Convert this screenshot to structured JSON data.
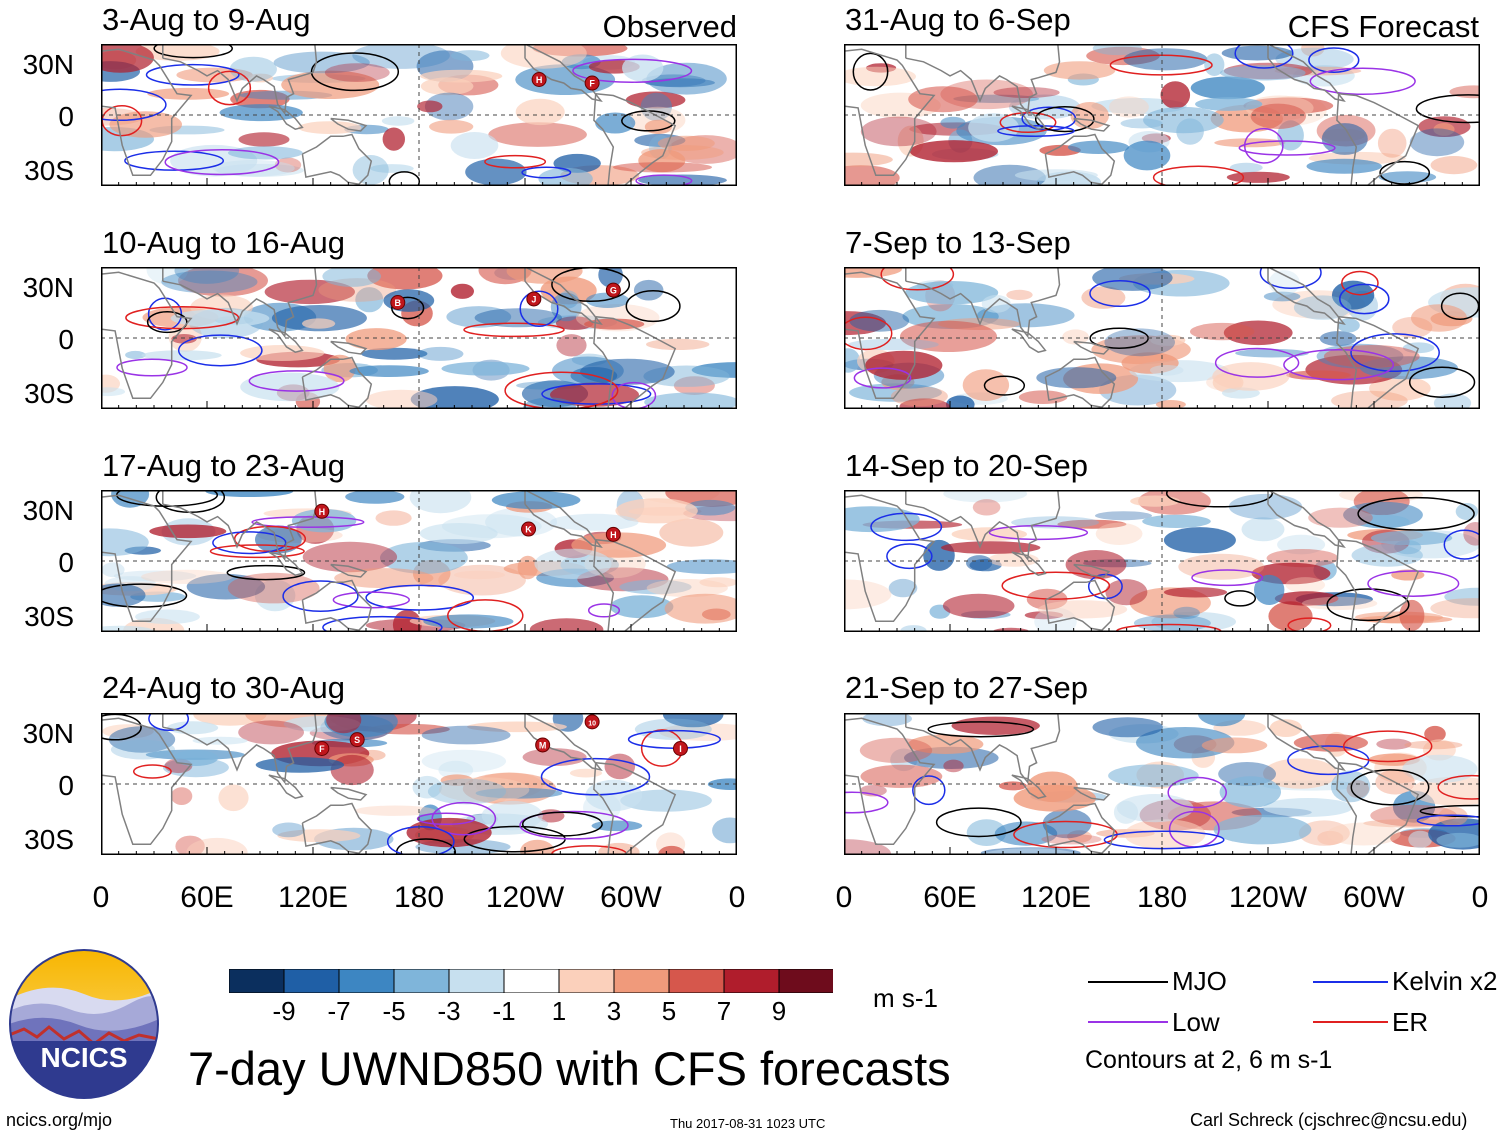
{
  "observed_label": "Observed",
  "forecast_label": "CFS Forecast",
  "panels_left": [
    {
      "title": "3-Aug to 9-Aug",
      "storms": [
        "H",
        "F"
      ]
    },
    {
      "title": "10-Aug to 16-Aug",
      "storms": [
        "B",
        "J",
        "G"
      ]
    },
    {
      "title": "17-Aug to 23-Aug",
      "storms": [
        "H",
        "K",
        "H"
      ]
    },
    {
      "title": "24-Aug to 30-Aug",
      "storms": [
        "F",
        "S",
        "M",
        "10",
        "I"
      ]
    }
  ],
  "panels_right": [
    {
      "title": "31-Aug to 6-Sep"
    },
    {
      "title": "7-Sep to 13-Sep"
    },
    {
      "title": "14-Sep to 20-Sep"
    },
    {
      "title": "21-Sep to 27-Sep"
    }
  ],
  "lat_labels": [
    "30N",
    "0",
    "30S"
  ],
  "lon_labels": [
    "0",
    "60E",
    "120E",
    "180",
    "120W",
    "60W",
    "0"
  ],
  "colorbar": {
    "ticks": [
      "-9",
      "-7",
      "-5",
      "-3",
      "-1",
      "1",
      "3",
      "5",
      "7",
      "9"
    ],
    "colors": [
      "#0b2f5e",
      "#1f5fa6",
      "#3d86c2",
      "#7fb5da",
      "#c7e0ef",
      "#ffffff",
      "#fbd0bb",
      "#f09a7b",
      "#d6574c",
      "#b01d2c",
      "#6e0c1c"
    ],
    "units": "m s-1"
  },
  "legend": {
    "items": [
      {
        "label": "MJO",
        "color": "#000000"
      },
      {
        "label": "Kelvin x2",
        "color": "#1b2ee8"
      },
      {
        "label": "Low",
        "color": "#9a33e6"
      },
      {
        "label": "ER",
        "color": "#e02020"
      }
    ],
    "note": "Contours at 2, 6 m s-1"
  },
  "title": "7-day UWND850 with CFS forecasts",
  "logo_text": "NCICS",
  "footer": {
    "url": "ncics.org/mjo",
    "timestamp": "Thu 2017-08-31 1023 UTC",
    "author": "Carl Schreck (cjschrec@ncsu.edu)"
  }
}
